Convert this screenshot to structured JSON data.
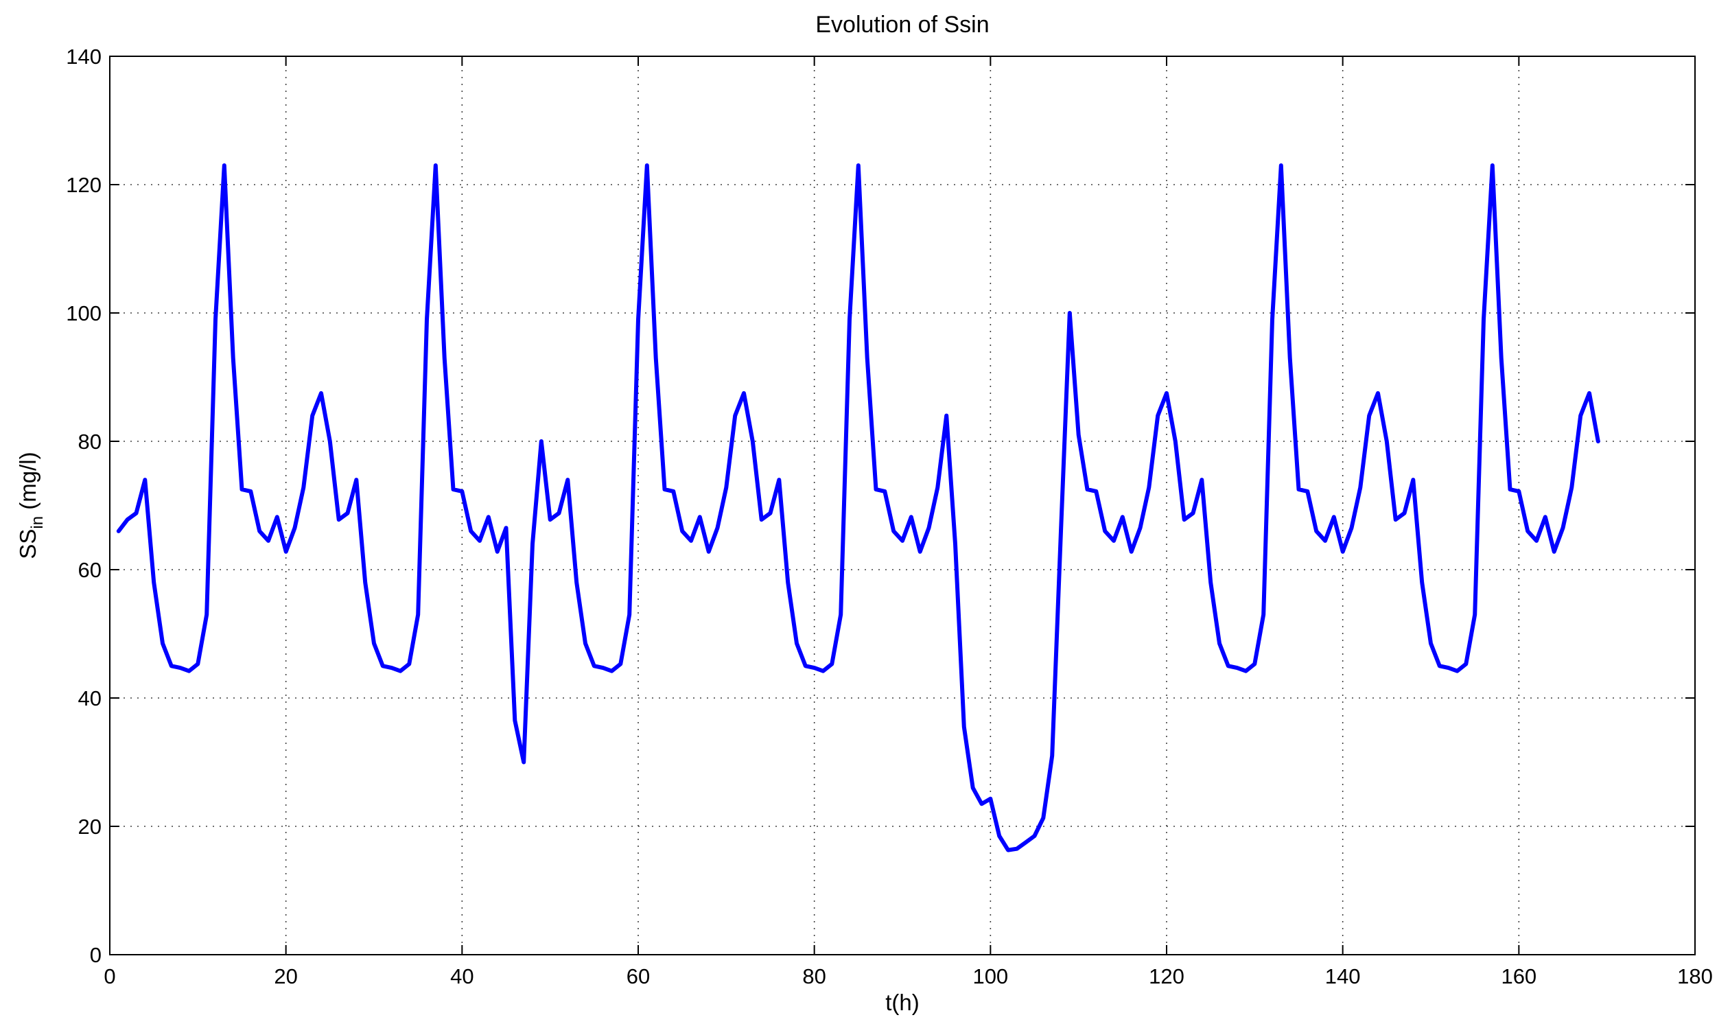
{
  "chart_data": {
    "type": "line",
    "title": "Evolution of Ssin",
    "xlabel": "t(h)",
    "ylabel": {
      "main": "SS",
      "sub": "in",
      "rest": " (mg/l)"
    },
    "xlim": [
      0,
      180
    ],
    "ylim": [
      0,
      140
    ],
    "xticks": [
      0,
      20,
      40,
      60,
      80,
      100,
      120,
      140,
      160,
      180
    ],
    "yticks": [
      0,
      20,
      40,
      60,
      80,
      100,
      120,
      140
    ],
    "grid": true,
    "line_color": "#0000ff",
    "series": [
      {
        "x": [
          1,
          2,
          3,
          4,
          5,
          6,
          7,
          8,
          9,
          10,
          11,
          12,
          13,
          14,
          15,
          16,
          17,
          18,
          19,
          20,
          21,
          22,
          23,
          24,
          25,
          26,
          27,
          28,
          29,
          30,
          31,
          32,
          33,
          34,
          35,
          36,
          37,
          38,
          39,
          40,
          41,
          42,
          43,
          44,
          45,
          46,
          47,
          48,
          49,
          50,
          51,
          52,
          53,
          54,
          55,
          56,
          57,
          58,
          59,
          60,
          61,
          62,
          63,
          64,
          65,
          66,
          67,
          68,
          69,
          70,
          71,
          72,
          73,
          74,
          75,
          76,
          77,
          78,
          79,
          80,
          81,
          82,
          83,
          84,
          85,
          86,
          87,
          88,
          89,
          90,
          91,
          92,
          93,
          94,
          95,
          96,
          97,
          98,
          99,
          100,
          101,
          102,
          103,
          104,
          105,
          106,
          107,
          108,
          109,
          110,
          111,
          112,
          113,
          114,
          115,
          116,
          117,
          118,
          119,
          120,
          121,
          122,
          123,
          124,
          125,
          126,
          127,
          128,
          129,
          130,
          131,
          132,
          133,
          134,
          135,
          136,
          137,
          138,
          139,
          140,
          141,
          142,
          143,
          144,
          145,
          146,
          147,
          148,
          149,
          150,
          151,
          152,
          153,
          154,
          155,
          156,
          157,
          158,
          159,
          160,
          161,
          162,
          163,
          164,
          165,
          166,
          167,
          168,
          169
        ],
        "y": [
          66,
          67.8,
          68.8,
          74,
          58,
          48.5,
          45,
          44.7,
          44.2,
          45.3,
          53,
          99,
          123,
          93,
          72.5,
          72.2,
          66,
          64.5,
          68.2,
          62.8,
          66.5,
          72.8,
          84,
          87.5,
          80,
          67.8,
          68.8,
          74,
          58,
          48.5,
          45,
          44.7,
          44.2,
          45.3,
          53,
          99,
          123,
          93,
          72.5,
          72.2,
          66,
          64.5,
          68.2,
          62.8,
          66.5,
          36.5,
          30,
          64,
          80,
          67.8,
          68.8,
          74,
          58,
          48.5,
          45,
          44.7,
          44.2,
          45.3,
          53,
          99,
          123,
          93,
          72.5,
          72.2,
          66,
          64.5,
          68.2,
          62.8,
          66.5,
          72.8,
          84,
          87.5,
          80,
          67.8,
          68.8,
          74,
          58,
          48.5,
          45,
          44.7,
          44.2,
          45.3,
          53,
          99,
          123,
          93,
          72.5,
          72.2,
          66,
          64.5,
          68.2,
          62.8,
          66.5,
          72.8,
          84,
          64,
          35.5,
          26,
          23.5,
          24.3,
          18.5,
          16.3,
          16.5,
          17.5,
          18.5,
          21.3,
          31,
          66,
          100,
          81,
          72.5,
          72.2,
          66,
          64.5,
          68.2,
          62.8,
          66.5,
          72.8,
          84,
          87.5,
          80,
          67.8,
          68.8,
          74,
          58,
          48.5,
          45,
          44.7,
          44.2,
          45.3,
          53,
          99,
          123,
          93,
          72.5,
          72.2,
          66,
          64.5,
          68.2,
          62.8,
          66.5,
          72.8,
          84,
          87.5,
          80,
          67.8,
          68.8,
          74,
          58,
          48.5,
          45,
          44.7,
          44.2,
          45.3,
          53,
          99,
          123,
          93,
          72.5,
          72.2,
          66,
          64.5,
          68.2,
          62.8,
          66.5,
          72.8,
          84,
          87.5,
          80
        ]
      }
    ]
  }
}
